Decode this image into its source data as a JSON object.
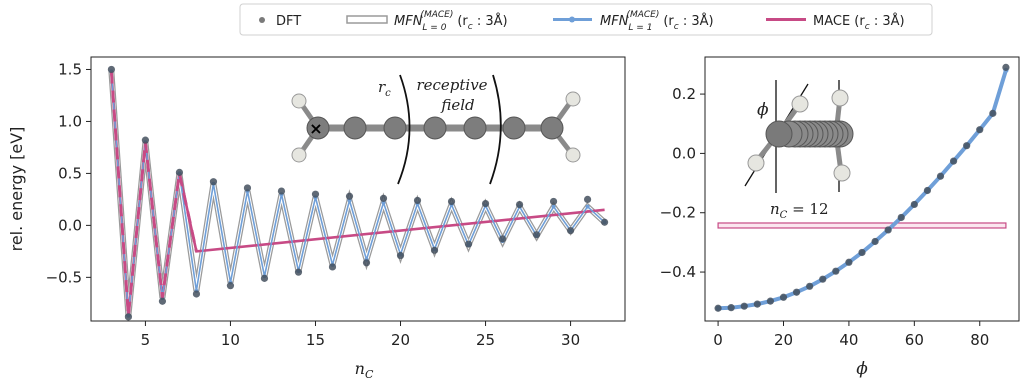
{
  "legend": {
    "items": [
      {
        "key": "dft",
        "label": "DFT",
        "color": "#6f6f6f"
      },
      {
        "key": "mfn0",
        "label": "MFN",
        "sup": "(MACE)",
        "sub": "L = 0",
        "tail": "(r",
        "tail_sub": "c",
        "tail_end": " : 3Å)",
        "color": "#bdbdbd"
      },
      {
        "key": "mfn1",
        "label": "MFN",
        "sup": "(MACE)",
        "sub": "L = 1",
        "tail": "(r",
        "tail_sub": "c",
        "tail_end": " : 3Å)",
        "color": "#6f9fd8"
      },
      {
        "key": "mace",
        "label": "MACE (r",
        "tail_sub": "c",
        "tail_end": " : 3Å)",
        "color": "#c74a85"
      }
    ]
  },
  "left_inset": {
    "rc_label": "r",
    "rc_sub": "c",
    "field_label_1": "receptive",
    "field_label_2": "field",
    "marker": "×"
  },
  "right_inset": {
    "phi_label": "ϕ",
    "nc_label": "n",
    "nc_sub": "C",
    "nc_value": " = 12"
  },
  "chart_data": [
    {
      "type": "line",
      "xlabel": "n",
      "xlabel_sub": "C",
      "ylabel": "rel. energy [eV]",
      "xlim": [
        1.8,
        33.2
      ],
      "ylim": [
        -0.92,
        1.62
      ],
      "xticks": [
        5,
        10,
        15,
        20,
        25,
        30
      ],
      "yticks": [
        -0.5,
        0.0,
        0.5,
        1.0,
        1.5
      ],
      "ytick_labels": [
        "−0.5",
        "0.0",
        "0.5",
        "1.0",
        "1.5"
      ],
      "x": [
        3,
        4,
        5,
        6,
        7,
        8,
        9,
        10,
        11,
        12,
        13,
        14,
        15,
        16,
        17,
        18,
        19,
        20,
        21,
        22,
        23,
        24,
        25,
        26,
        27,
        28,
        29,
        30,
        31,
        32
      ],
      "series": [
        {
          "key": "dft",
          "values": [
            1.5,
            -0.88,
            0.82,
            -0.73,
            0.51,
            -0.66,
            0.42,
            -0.58,
            0.36,
            -0.51,
            0.33,
            -0.45,
            0.3,
            -0.4,
            0.28,
            -0.36,
            0.26,
            -0.29,
            0.24,
            -0.24,
            0.23,
            -0.18,
            0.21,
            -0.13,
            0.2,
            -0.09,
            0.23,
            -0.05,
            0.25,
            0.03
          ]
        },
        {
          "key": "mfn0",
          "values": [
            1.48,
            -0.87,
            0.8,
            -0.7,
            0.5,
            -0.63,
            0.4,
            -0.55,
            0.33,
            -0.49,
            0.3,
            -0.44,
            0.27,
            -0.38,
            0.24,
            -0.33,
            0.22,
            -0.28,
            0.21,
            -0.23,
            0.2,
            -0.19,
            0.19,
            -0.15,
            0.18,
            -0.1,
            0.18,
            -0.05,
            0.18,
            0.03
          ]
        },
        {
          "key": "mfn1",
          "values": [
            1.48,
            -0.87,
            0.8,
            -0.7,
            0.5,
            -0.63,
            0.4,
            -0.55,
            0.33,
            -0.49,
            0.3,
            -0.44,
            0.27,
            -0.38,
            0.24,
            -0.33,
            0.22,
            -0.28,
            0.21,
            -0.23,
            0.2,
            -0.19,
            0.19,
            -0.15,
            0.18,
            -0.1,
            0.18,
            -0.05,
            0.18,
            0.03
          ]
        },
        {
          "key": "mace",
          "x": [
            3,
            4,
            5,
            6,
            7,
            8,
            32
          ],
          "values": [
            1.48,
            -0.87,
            0.8,
            -0.7,
            0.5,
            -0.25,
            0.15
          ]
        }
      ]
    },
    {
      "type": "line",
      "xlabel": "ϕ",
      "ylabel": "",
      "xlim": [
        -4,
        92
      ],
      "ylim": [
        -0.565,
        0.325
      ],
      "xticks": [
        0,
        20,
        40,
        60,
        80
      ],
      "yticks": [
        -0.4,
        -0.2,
        0.0,
        0.2
      ],
      "ytick_labels": [
        "−0.4",
        "−0.2",
        "0.0",
        "0.2"
      ],
      "x": [
        0,
        4,
        8,
        12,
        16,
        20,
        24,
        28,
        32,
        36,
        40,
        44,
        48,
        52,
        56,
        60,
        64,
        68,
        72,
        76,
        80,
        84,
        88
      ],
      "series": [
        {
          "key": "dft",
          "values": [
            -0.522,
            -0.52,
            -0.515,
            -0.508,
            -0.498,
            -0.485,
            -0.468,
            -0.448,
            -0.424,
            -0.397,
            -0.367,
            -0.334,
            -0.297,
            -0.258,
            -0.216,
            -0.172,
            -0.125,
            -0.077,
            -0.026,
            0.026,
            0.08,
            0.135,
            0.29
          ]
        },
        {
          "key": "mfn1",
          "values": [
            -0.522,
            -0.52,
            -0.515,
            -0.508,
            -0.498,
            -0.485,
            -0.468,
            -0.448,
            -0.424,
            -0.397,
            -0.367,
            -0.334,
            -0.297,
            -0.258,
            -0.216,
            -0.172,
            -0.125,
            -0.077,
            -0.026,
            0.026,
            0.08,
            0.135,
            0.28
          ]
        },
        {
          "key": "mace",
          "x": [
            0,
            88
          ],
          "values": [
            -0.243,
            -0.243
          ]
        }
      ]
    }
  ]
}
